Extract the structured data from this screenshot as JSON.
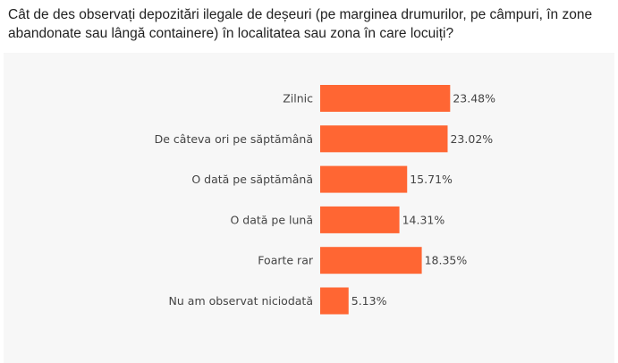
{
  "question": "Cât de des observați depozitări ilegale de deșeuri (pe marginea drumurilor, pe câmpuri, în zone abandonate sau lângă containere) în localitatea sau zona în care locuiți?",
  "colors": {
    "bar": "#ff6633",
    "panel_bg": "#f7f7f7",
    "text": "#444444"
  },
  "chart_data": {
    "type": "bar",
    "orientation": "horizontal",
    "title": "",
    "xlabel": "",
    "ylabel": "",
    "grid": false,
    "legend": "none",
    "xlim": [
      0,
      25
    ],
    "categories": [
      "Zilnic",
      "De câteva ori pe săptămână",
      "O dată pe săptămână",
      "O dată pe lună",
      "Foarte rar",
      "Nu am observat niciodată"
    ],
    "values": [
      23.48,
      23.02,
      15.71,
      14.31,
      18.35,
      5.13
    ],
    "value_labels": [
      "23.48%",
      "23.02%",
      "15.71%",
      "14.31%",
      "18.35%",
      "5.13%"
    ]
  }
}
